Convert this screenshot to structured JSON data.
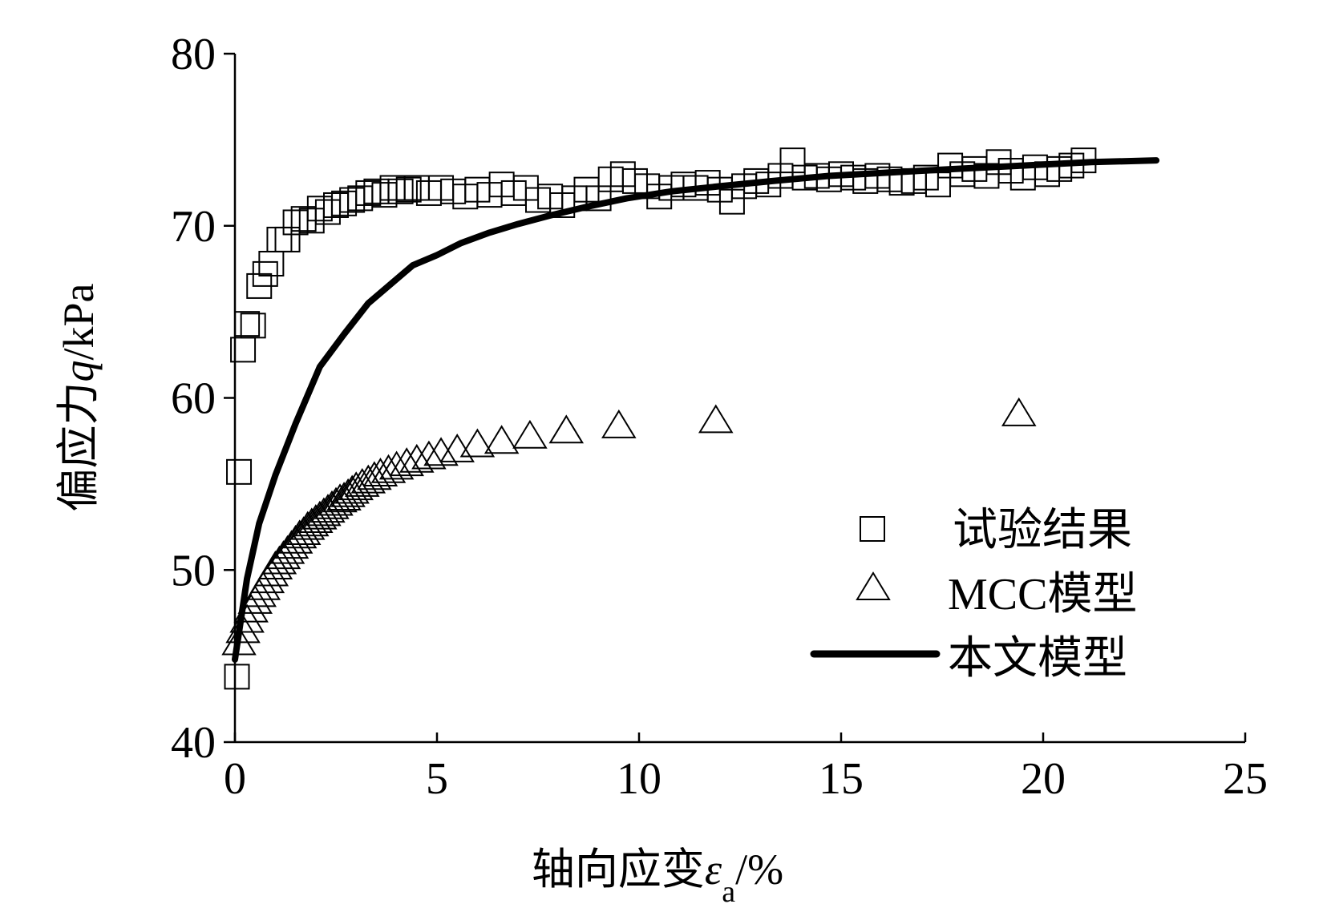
{
  "chart_data": {
    "type": "scatter",
    "xlabel_main": "轴向应变",
    "xlabel_symbol": "ε",
    "xlabel_sub": "a",
    "xlabel_unit": "/%",
    "ylabel_main": "偏应力",
    "ylabel_symbol": "q",
    "ylabel_unit": "/kPa",
    "xlim": [
      0,
      25
    ],
    "ylim": [
      40,
      80
    ],
    "xticks": [
      0,
      5,
      10,
      15,
      20,
      25
    ],
    "yticks": [
      40,
      50,
      60,
      70,
      80
    ],
    "xtick_labels": [
      "0",
      "5",
      "10",
      "15",
      "20",
      "25"
    ],
    "ytick_labels": [
      "40",
      "50",
      "60",
      "70",
      "80"
    ],
    "grid": false,
    "legend_position": "bottom-right",
    "series": [
      {
        "name": "试验结果",
        "name_latin": "",
        "name_cjk": "试验结果",
        "marker": "square",
        "color": "#000000",
        "x": [
          0.05,
          0.1,
          0.2,
          0.3,
          0.45,
          0.6,
          0.75,
          0.9,
          1.1,
          1.3,
          1.5,
          1.7,
          1.9,
          2.1,
          2.3,
          2.5,
          2.7,
          2.9,
          3.1,
          3.3,
          3.5,
          3.7,
          3.9,
          4.1,
          4.3,
          4.5,
          4.8,
          5.1,
          5.4,
          5.7,
          6.0,
          6.3,
          6.6,
          6.9,
          7.2,
          7.5,
          7.8,
          8.1,
          8.4,
          8.7,
          9.0,
          9.3,
          9.6,
          9.9,
          10.2,
          10.5,
          10.8,
          11.1,
          11.4,
          11.7,
          12.0,
          12.3,
          12.6,
          12.9,
          13.2,
          13.5,
          13.8,
          14.1,
          14.4,
          14.7,
          15.0,
          15.3,
          15.6,
          15.9,
          16.2,
          16.5,
          16.8,
          17.1,
          17.4,
          17.7,
          18.0,
          18.3,
          18.6,
          18.9,
          19.2,
          19.5,
          19.8,
          20.1,
          20.4,
          20.7,
          21.0
        ],
        "y": [
          43.8,
          55.7,
          62.8,
          64.3,
          64.2,
          66.5,
          67.2,
          67.8,
          69.2,
          69.2,
          70.2,
          70.4,
          70.3,
          71.0,
          70.8,
          71.2,
          71.3,
          71.5,
          71.6,
          71.9,
          72.0,
          71.8,
          72.2,
          72.0,
          72.1,
          72.2,
          71.9,
          72.2,
          72.0,
          71.7,
          72.1,
          71.8,
          72.4,
          71.9,
          72.2,
          71.5,
          71.7,
          71.2,
          71.6,
          72.1,
          71.6,
          72.7,
          73.0,
          72.6,
          72.3,
          71.7,
          72.2,
          72.4,
          72.2,
          72.5,
          72.1,
          71.4,
          72.3,
          72.6,
          72.4,
          72.9,
          73.8,
          72.8,
          72.9,
          72.7,
          73.0,
          72.8,
          72.6,
          72.9,
          72.7,
          72.5,
          72.6,
          72.8,
          72.4,
          73.5,
          73.0,
          73.3,
          72.9,
          73.7,
          73.2,
          72.8,
          73.4,
          73.0,
          73.3,
          73.5,
          73.8
        ]
      },
      {
        "name": "MCC模型",
        "name_latin": "MCC",
        "name_cjk": "模型",
        "marker": "triangle",
        "color": "#000000",
        "x": [
          0.1,
          0.2,
          0.3,
          0.4,
          0.5,
          0.6,
          0.7,
          0.8,
          0.9,
          1.0,
          1.1,
          1.2,
          1.3,
          1.4,
          1.5,
          1.6,
          1.7,
          1.8,
          1.9,
          2.0,
          2.1,
          2.2,
          2.3,
          2.4,
          2.5,
          2.6,
          2.7,
          2.8,
          2.9,
          3.0,
          3.15,
          3.3,
          3.45,
          3.6,
          3.8,
          4.0,
          4.25,
          4.5,
          4.8,
          5.1,
          5.5,
          6.0,
          6.6,
          7.3,
          8.2,
          9.5,
          11.9,
          19.4
        ],
        "y": [
          45.8,
          46.5,
          47.1,
          47.7,
          48.2,
          48.6,
          49.0,
          49.4,
          49.8,
          50.2,
          50.5,
          50.8,
          51.1,
          51.4,
          51.7,
          52.0,
          52.2,
          52.5,
          52.7,
          52.9,
          53.1,
          53.3,
          53.5,
          53.7,
          53.9,
          54.1,
          54.2,
          54.4,
          54.6,
          54.8,
          55.0,
          55.2,
          55.4,
          55.6,
          55.8,
          56.0,
          56.2,
          56.4,
          56.6,
          56.8,
          57.0,
          57.3,
          57.5,
          57.8,
          58.1,
          58.4,
          58.7,
          59.1
        ]
      },
      {
        "name": "本文模型",
        "name_latin": "",
        "name_cjk": "本文模型",
        "marker": "line",
        "color": "#000000",
        "x": [
          0,
          0.3,
          0.6,
          1.0,
          1.5,
          2.1,
          2.7,
          3.3,
          3.9,
          4.4,
          5.0,
          5.6,
          6.3,
          7.0,
          7.8,
          8.7,
          9.7,
          10.8,
          12.0,
          13.3,
          14.7,
          16.2,
          17.8,
          19.5,
          21.2,
          22.8
        ],
        "y": [
          44.8,
          49.5,
          52.7,
          55.5,
          58.5,
          61.8,
          63.7,
          65.5,
          66.7,
          67.7,
          68.3,
          69.0,
          69.6,
          70.1,
          70.6,
          71.1,
          71.6,
          72.0,
          72.3,
          72.6,
          72.9,
          73.1,
          73.3,
          73.5,
          73.7,
          73.8
        ]
      }
    ]
  }
}
